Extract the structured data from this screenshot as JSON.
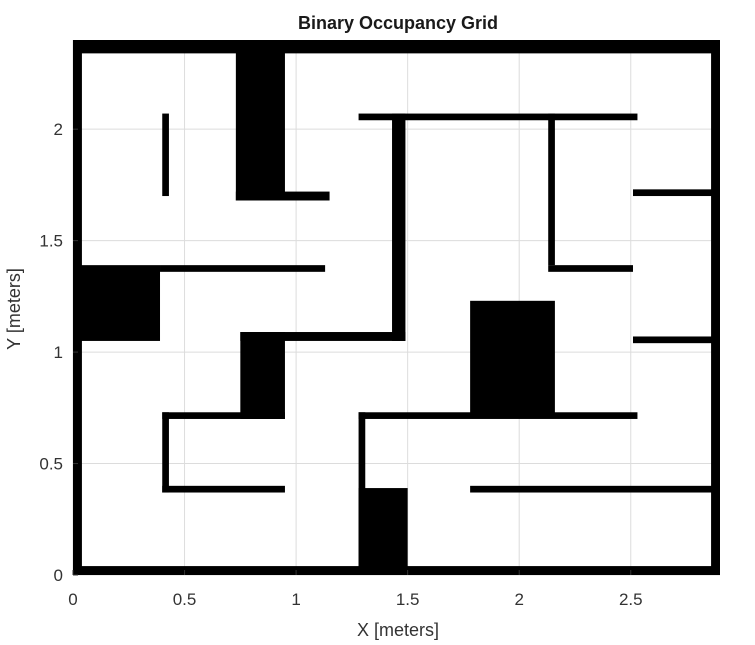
{
  "chart_data": {
    "type": "heatmap",
    "title": "Binary Occupancy Grid",
    "xlabel": "X [meters]",
    "ylabel": "Y [meters]",
    "xlim": [
      0,
      2.9
    ],
    "ylim": [
      0,
      2.4
    ],
    "xticks": [
      "0",
      "0.5",
      "1",
      "1.5",
      "2",
      "2.5"
    ],
    "yticks": [
      "0",
      "0.5",
      "1",
      "1.5",
      "2"
    ],
    "grid": true,
    "colors": {
      "occupied": "#000000",
      "free": "#ffffff",
      "grid": "#dcdcdc"
    },
    "occupied_regions": [
      {
        "x": [
          0.0,
          2.9
        ],
        "y": [
          2.34,
          2.4
        ]
      },
      {
        "x": [
          0.0,
          2.9
        ],
        "y": [
          0.0,
          0.04
        ]
      },
      {
        "x": [
          0.0,
          0.04
        ],
        "y": [
          0.0,
          2.4
        ]
      },
      {
        "x": [
          2.86,
          2.9
        ],
        "y": [
          0.0,
          2.4
        ]
      },
      {
        "x": [
          0.73,
          0.95
        ],
        "y": [
          1.68,
          2.4
        ]
      },
      {
        "x": [
          0.73,
          1.15
        ],
        "y": [
          1.68,
          1.72
        ]
      },
      {
        "x": [
          0.4,
          0.43
        ],
        "y": [
          1.7,
          2.07
        ]
      },
      {
        "x": [
          1.28,
          2.53
        ],
        "y": [
          2.04,
          2.07
        ]
      },
      {
        "x": [
          1.43,
          1.49
        ],
        "y": [
          1.05,
          2.07
        ]
      },
      {
        "x": [
          0.75,
          1.49
        ],
        "y": [
          1.05,
          1.09
        ]
      },
      {
        "x": [
          2.13,
          2.16
        ],
        "y": [
          1.39,
          2.07
        ]
      },
      {
        "x": [
          2.51,
          2.9
        ],
        "y": [
          1.7,
          1.73
        ]
      },
      {
        "x": [
          0.0,
          0.39
        ],
        "y": [
          1.05,
          1.39
        ]
      },
      {
        "x": [
          0.39,
          1.13
        ],
        "y": [
          1.36,
          1.39
        ]
      },
      {
        "x": [
          2.13,
          2.51
        ],
        "y": [
          1.36,
          1.39
        ]
      },
      {
        "x": [
          2.51,
          2.9
        ],
        "y": [
          1.04,
          1.07
        ]
      },
      {
        "x": [
          0.75,
          0.95
        ],
        "y": [
          0.7,
          1.09
        ]
      },
      {
        "x": [
          0.4,
          0.95
        ],
        "y": [
          0.7,
          0.73
        ]
      },
      {
        "x": [
          0.4,
          0.43
        ],
        "y": [
          0.37,
          0.73
        ]
      },
      {
        "x": [
          0.4,
          0.95
        ],
        "y": [
          0.37,
          0.4
        ]
      },
      {
        "x": [
          1.78,
          2.16
        ],
        "y": [
          0.71,
          1.23
        ]
      },
      {
        "x": [
          1.28,
          2.53
        ],
        "y": [
          0.7,
          0.73
        ]
      },
      {
        "x": [
          1.28,
          1.31
        ],
        "y": [
          0.0,
          0.73
        ]
      },
      {
        "x": [
          1.28,
          1.5
        ],
        "y": [
          0.0,
          0.39
        ]
      },
      {
        "x": [
          1.78,
          2.9
        ],
        "y": [
          0.37,
          0.4
        ]
      }
    ]
  }
}
